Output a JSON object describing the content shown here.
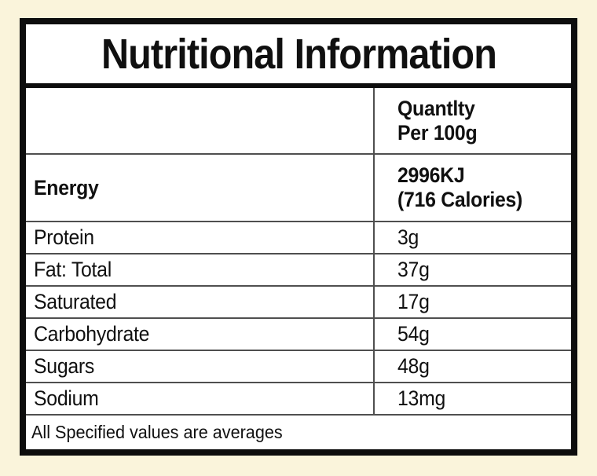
{
  "page": {
    "background_color": "#faf4db",
    "border_color": "#0d0d0d"
  },
  "label": {
    "title": "Nutritional Information",
    "header": {
      "quantity_line1": "Quantlty",
      "quantity_line2": "Per 100g"
    },
    "energy": {
      "name": "Energy",
      "value_line1": "2996KJ",
      "value_line2": "(716 Calories)"
    },
    "rows": [
      {
        "name": "Protein",
        "value": "3g"
      },
      {
        "name": "Fat: Total",
        "value": "37g"
      },
      {
        "name": "Saturated",
        "value": "17g"
      },
      {
        "name": "Carbohydrate",
        "value": "54g"
      },
      {
        "name": "Sugars",
        "value": "48g"
      },
      {
        "name": "Sodium",
        "value": "13mg"
      }
    ],
    "footnote": "All Specified values are averages"
  }
}
